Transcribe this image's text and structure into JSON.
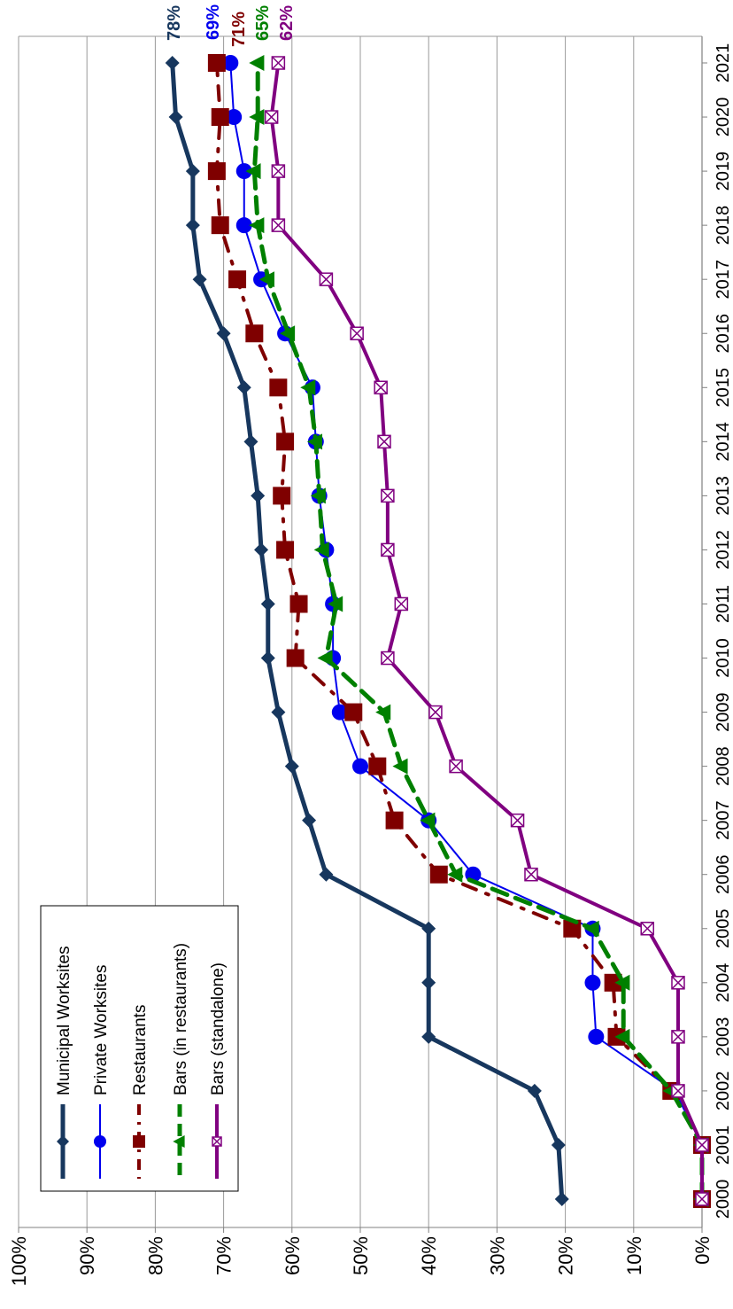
{
  "chart_data": {
    "type": "line",
    "orientation": "rotated 90° clockwise (years run top-to-bottom on the right, percentages run left-to-right along the bottom)",
    "x": [
      "2000",
      "2001",
      "2002",
      "2003",
      "2004",
      "2005",
      "2006",
      "2007",
      "2008",
      "2009",
      "2010",
      "2011",
      "2012",
      "2013",
      "2014",
      "2015",
      "2016",
      "2017",
      "2018",
      "2019",
      "2020",
      "2021"
    ],
    "y_ticks": [
      "0%",
      "10%",
      "20%",
      "30%",
      "40%",
      "50%",
      "60%",
      "70%",
      "80%",
      "90%",
      "100%"
    ],
    "ylim": [
      0,
      100
    ],
    "grid": true,
    "legend_position": "bottom-left",
    "series": [
      {
        "name": "Municipal Worksites",
        "color": "#17375e",
        "marker": "diamond",
        "dash": "solid",
        "values": [
          20.5,
          21,
          24.5,
          40,
          40,
          40,
          55,
          57.5,
          60,
          62,
          63.5,
          63.5,
          64.5,
          65,
          66,
          67,
          70,
          73.5,
          74.5,
          74.5,
          77,
          77.5
        ],
        "end_label": "78%"
      },
      {
        "name": "Private Worksites",
        "color": "#0000ee",
        "marker": "circle",
        "dash": "solid",
        "values": [
          0,
          0,
          4,
          15.5,
          16,
          16,
          33.5,
          40,
          50,
          53,
          54,
          54,
          55,
          56,
          56.5,
          57,
          61,
          64.5,
          67,
          67,
          68.5,
          69
        ],
        "end_label": "69%"
      },
      {
        "name": "Restaurants",
        "color": "#7f0000",
        "marker": "square",
        "dash": "dash-dot",
        "values": [
          0,
          0,
          4.5,
          12.5,
          13,
          19,
          38.5,
          45,
          47.5,
          51,
          59.5,
          59,
          61,
          61.5,
          61,
          62,
          65.5,
          68,
          70.5,
          71,
          70.5,
          71
        ],
        "end_label": "71%"
      },
      {
        "name": "Bars (in restaurants)",
        "color": "#008000",
        "marker": "triangle",
        "dash": "dashed",
        "values": [
          0,
          0,
          4.5,
          11.5,
          11.5,
          16,
          36,
          40,
          44,
          46.5,
          55,
          53.5,
          55.5,
          56,
          56.5,
          57.5,
          60.5,
          63.5,
          65,
          65.5,
          65,
          65
        ],
        "end_label": "65%"
      },
      {
        "name": "Bars (standalone)",
        "color": "#800080",
        "marker": "x-box",
        "dash": "solid",
        "values": [
          0,
          0,
          3.5,
          3.5,
          3.5,
          8,
          25,
          27,
          36,
          39,
          46,
          44,
          46,
          46,
          46.5,
          47,
          50.5,
          55,
          62,
          62,
          63,
          62
        ],
        "end_label": "62%"
      }
    ]
  }
}
